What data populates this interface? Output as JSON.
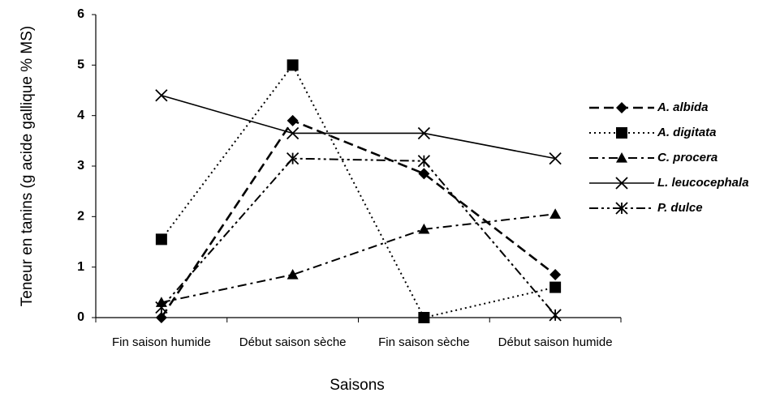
{
  "chart_data": {
    "type": "line",
    "x_label": "Saisons",
    "y_label": "Teneur en tanins (g acide gallique % MS)",
    "categories": [
      "Fin saison humide",
      "Début saison sèche",
      "Fin saison sèche",
      "Début saison humide"
    ],
    "ylim": [
      0,
      6
    ],
    "yticks": [
      0,
      1,
      2,
      3,
      4,
      5,
      6
    ],
    "grid": false,
    "legend": "right",
    "series": [
      {
        "name": "A. albida",
        "color": "#000000",
        "line_style": "dashed",
        "marker": "diamond",
        "values": [
          0,
          3.9,
          2.85,
          0.85
        ]
      },
      {
        "name": "A. digitata",
        "color": "#000000",
        "line_style": "dotted",
        "marker": "square",
        "values": [
          1.55,
          5.0,
          0,
          0.6
        ]
      },
      {
        "name": "C. procera",
        "color": "#000000",
        "line_style": "dashdot",
        "marker": "triangle",
        "values": [
          0.3,
          0.85,
          1.75,
          2.05
        ]
      },
      {
        "name": "L. leucocephala",
        "color": "#000000",
        "line_style": "solid",
        "marker": "x",
        "values": [
          4.4,
          3.65,
          3.65,
          3.15
        ]
      },
      {
        "name": "P. dulce",
        "color": "#000000",
        "line_style": "dashdotdot",
        "marker": "star",
        "values": [
          0.2,
          3.15,
          3.1,
          0.05
        ]
      }
    ]
  }
}
